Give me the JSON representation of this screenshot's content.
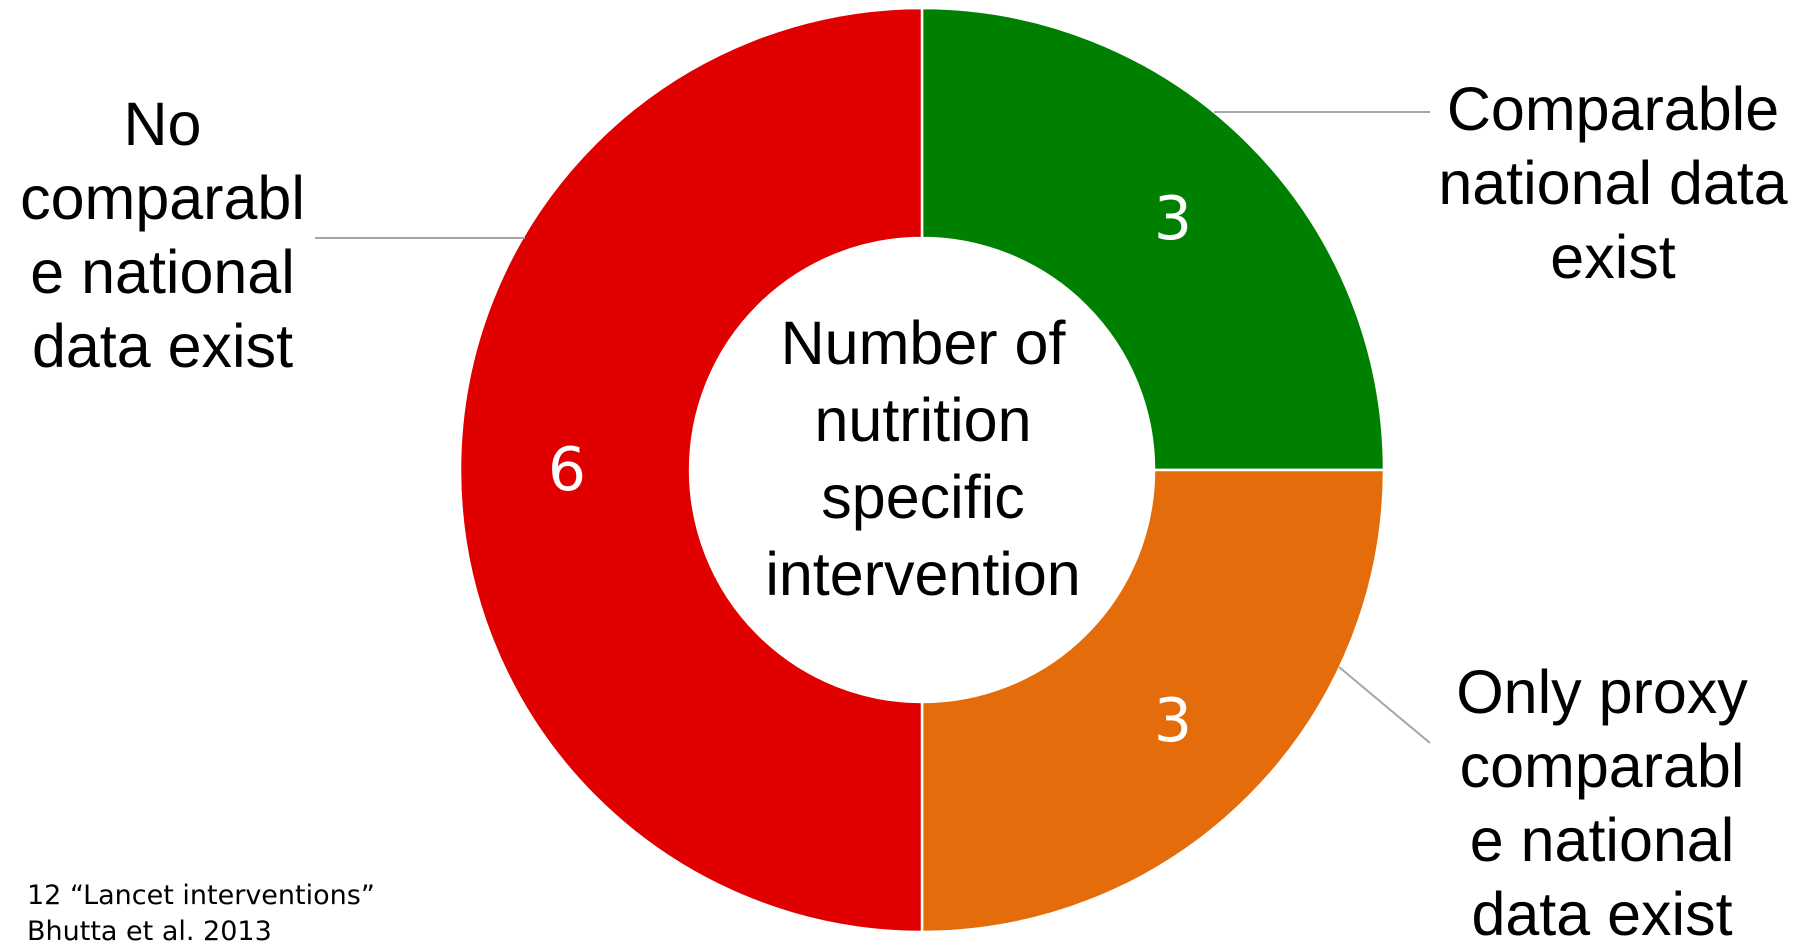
{
  "chart_data": {
    "type": "pie",
    "center_label": "Number of nutrition specific intervention",
    "slices": [
      {
        "label": "Comparable national data exist",
        "value": 3,
        "value_label": "3",
        "color": "#008000"
      },
      {
        "label": "Only proxy comparable national data exist",
        "value": 3,
        "value_label": "3",
        "color": "#E46C0A"
      },
      {
        "label": "No comparable national data exist",
        "value": 6,
        "value_label": "6",
        "color": "#E00000"
      }
    ],
    "legend": "none"
  },
  "labels": {
    "no_data_lines": [
      "No",
      "comparabl",
      "e national",
      "data exist"
    ],
    "comparable_lines": [
      "Comparable",
      "national data",
      "exist"
    ],
    "proxy_lines": [
      "Only proxy",
      "comparabl",
      "e national",
      "data exist"
    ],
    "center_lines": [
      "Number of",
      "nutrition",
      "specific",
      "intervention"
    ]
  },
  "footnote": {
    "line1": "12 “Lancet interventions”",
    "line2": "Bhutta et al. 2013"
  }
}
